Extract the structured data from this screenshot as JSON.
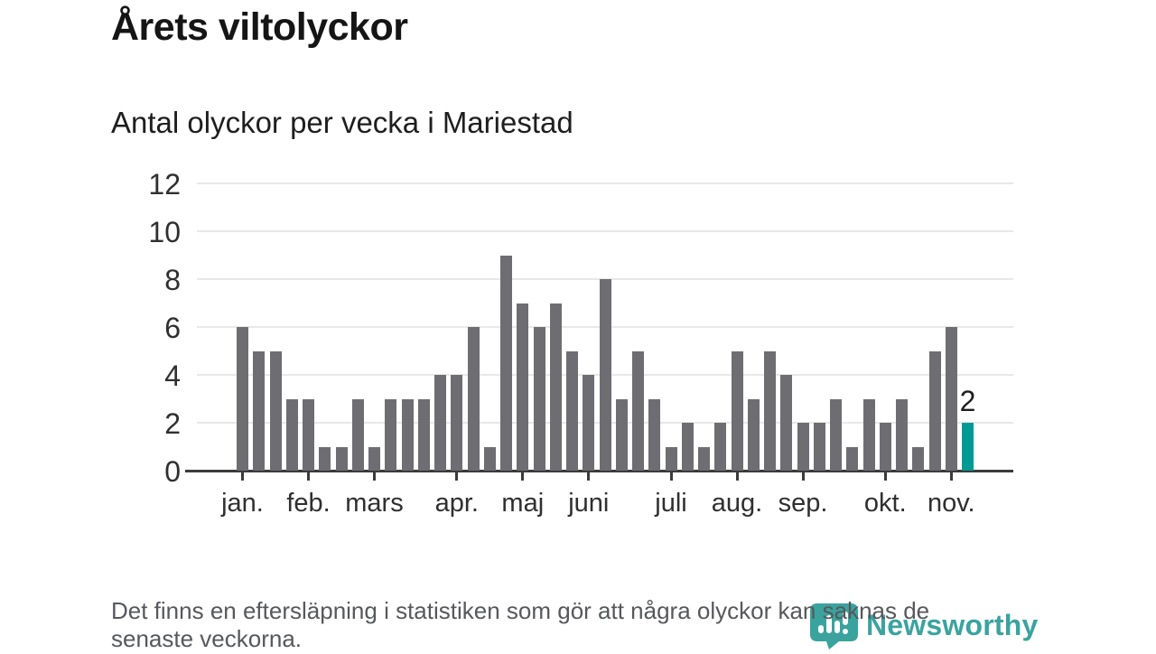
{
  "title": "Årets viltolyckor",
  "subtitle": "Antal olyckor per vecka i Mariestad",
  "footer": {
    "lines": [
      "Det finns en eftersläpning i statistiken som gör att några olyckor kan saknas de",
      "senaste veckorna."
    ]
  },
  "logo": {
    "name": "Newsworthy",
    "color": "#3aa39e",
    "icon": "newsworthy-pin-barchart-icon"
  },
  "chart_data": {
    "type": "bar",
    "title": "Årets viltolyckor",
    "subtitle": "Antal olyckor per vecka i Mariestad",
    "x_unit": "vecka",
    "values": [
      6,
      5,
      5,
      3,
      3,
      1,
      1,
      3,
      1,
      3,
      3,
      3,
      4,
      4,
      6,
      1,
      9,
      7,
      6,
      7,
      5,
      4,
      8,
      3,
      5,
      3,
      1,
      2,
      1,
      2,
      5,
      3,
      5,
      4,
      2,
      2,
      3,
      1,
      3,
      2,
      3,
      1,
      5,
      6,
      2
    ],
    "bar_color": "#6d6d72",
    "highlight": {
      "index": 44,
      "color": "#009a94",
      "label": "2"
    },
    "yticks": [
      0,
      2,
      4,
      6,
      8,
      10,
      12
    ],
    "ylim": [
      0,
      12
    ],
    "grid": true,
    "legend": "none",
    "month_ticks": [
      {
        "label": "jan.",
        "week": 1
      },
      {
        "label": "feb.",
        "week": 5
      },
      {
        "label": "mars",
        "week": 9
      },
      {
        "label": "apr.",
        "week": 14
      },
      {
        "label": "maj",
        "week": 18
      },
      {
        "label": "juni",
        "week": 22
      },
      {
        "label": "juli",
        "week": 27
      },
      {
        "label": "aug.",
        "week": 31
      },
      {
        "label": "sep.",
        "week": 35
      },
      {
        "label": "okt.",
        "week": 40
      },
      {
        "label": "nov.",
        "week": 44
      }
    ]
  }
}
